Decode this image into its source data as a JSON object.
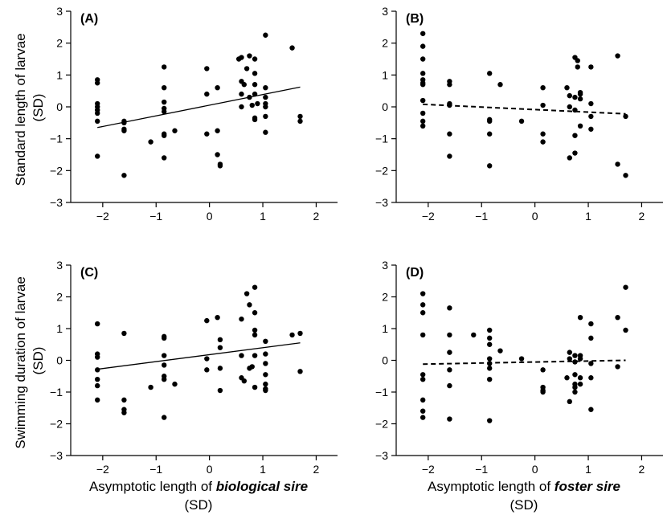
{
  "chart_data": [
    {
      "panel": "(A)",
      "type": "scatter",
      "xlim": [
        -2.6,
        2.4
      ],
      "ylim": [
        -3,
        3
      ],
      "xticks": [
        -2,
        -1,
        0,
        1,
        2
      ],
      "yticks": [
        -3,
        -2,
        -1,
        0,
        1,
        2,
        3
      ],
      "points": [
        [
          -2.1,
          0.85
        ],
        [
          -2.1,
          0.75
        ],
        [
          -2.1,
          0.1
        ],
        [
          -2.1,
          0.0
        ],
        [
          -2.1,
          -0.1
        ],
        [
          -2.1,
          -0.2
        ],
        [
          -2.1,
          -0.45
        ],
        [
          -2.1,
          -1.55
        ],
        [
          -1.6,
          -0.45
        ],
        [
          -1.6,
          -0.5
        ],
        [
          -1.6,
          -0.7
        ],
        [
          -1.6,
          -0.75
        ],
        [
          -1.6,
          -2.15
        ],
        [
          -1.1,
          -1.1
        ],
        [
          -0.85,
          1.25
        ],
        [
          -0.85,
          0.6
        ],
        [
          -0.85,
          0.15
        ],
        [
          -0.85,
          -0.05
        ],
        [
          -0.85,
          -0.15
        ],
        [
          -0.85,
          -0.85
        ],
        [
          -0.85,
          -0.9
        ],
        [
          -0.85,
          -1.6
        ],
        [
          -0.65,
          -0.75
        ],
        [
          -0.05,
          1.2
        ],
        [
          -0.05,
          0.4
        ],
        [
          -0.05,
          -0.85
        ],
        [
          0.15,
          0.6
        ],
        [
          0.15,
          -0.75
        ],
        [
          0.15,
          -1.5
        ],
        [
          0.2,
          -1.8
        ],
        [
          0.2,
          -1.85
        ],
        [
          0.55,
          1.5
        ],
        [
          0.6,
          1.55
        ],
        [
          0.6,
          0.8
        ],
        [
          0.65,
          0.7
        ],
        [
          0.6,
          0.4
        ],
        [
          0.6,
          0.0
        ],
        [
          0.7,
          1.2
        ],
        [
          0.75,
          1.6
        ],
        [
          0.75,
          0.3
        ],
        [
          0.8,
          0.05
        ],
        [
          0.85,
          1.5
        ],
        [
          0.85,
          1.05
        ],
        [
          0.85,
          0.7
        ],
        [
          0.85,
          0.4
        ],
        [
          0.9,
          0.1
        ],
        [
          0.85,
          -0.35
        ],
        [
          0.85,
          -0.4
        ],
        [
          1.05,
          2.25
        ],
        [
          1.05,
          0.6
        ],
        [
          1.05,
          0.3
        ],
        [
          1.05,
          0.1
        ],
        [
          1.05,
          0.0
        ],
        [
          1.05,
          -0.3
        ],
        [
          1.05,
          -0.8
        ],
        [
          1.55,
          1.85
        ],
        [
          1.7,
          -0.3
        ],
        [
          1.7,
          -0.45
        ]
      ],
      "trend": {
        "x": [
          -2.1,
          1.7
        ],
        "y": [
          -0.65,
          0.62
        ],
        "style": "solid"
      }
    },
    {
      "panel": "(B)",
      "type": "scatter",
      "xlim": [
        -2.6,
        2.4
      ],
      "ylim": [
        -3,
        3
      ],
      "xticks": [
        -2,
        -1,
        0,
        1,
        2
      ],
      "yticks": [
        -3,
        -2,
        -1,
        0,
        1,
        2,
        3
      ],
      "points": [
        [
          -2.1,
          2.3
        ],
        [
          -2.1,
          1.9
        ],
        [
          -2.1,
          1.5
        ],
        [
          -2.1,
          1.05
        ],
        [
          -2.1,
          0.85
        ],
        [
          -2.1,
          0.75
        ],
        [
          -2.1,
          0.7
        ],
        [
          -2.1,
          0.2
        ],
        [
          -2.1,
          -0.2
        ],
        [
          -2.1,
          -0.45
        ],
        [
          -2.1,
          -0.6
        ],
        [
          -1.6,
          0.8
        ],
        [
          -1.6,
          0.7
        ],
        [
          -1.6,
          0.1
        ],
        [
          -1.6,
          0.05
        ],
        [
          -1.6,
          -0.85
        ],
        [
          -1.6,
          -1.55
        ],
        [
          -0.85,
          1.05
        ],
        [
          -0.85,
          -0.4
        ],
        [
          -0.85,
          -0.45
        ],
        [
          -0.85,
          -0.85
        ],
        [
          -0.85,
          -1.85
        ],
        [
          -0.65,
          0.7
        ],
        [
          -0.25,
          -0.45
        ],
        [
          0.15,
          0.6
        ],
        [
          0.15,
          0.05
        ],
        [
          0.15,
          -0.85
        ],
        [
          0.15,
          -1.1
        ],
        [
          0.6,
          0.6
        ],
        [
          0.65,
          0.35
        ],
        [
          0.65,
          0.0
        ],
        [
          0.65,
          -1.6
        ],
        [
          0.75,
          1.55
        ],
        [
          0.8,
          1.45
        ],
        [
          0.8,
          1.25
        ],
        [
          0.75,
          0.3
        ],
        [
          0.75,
          -0.1
        ],
        [
          0.75,
          -0.9
        ],
        [
          0.75,
          -1.45
        ],
        [
          0.85,
          0.45
        ],
        [
          0.85,
          0.4
        ],
        [
          0.85,
          0.25
        ],
        [
          0.85,
          -0.6
        ],
        [
          1.05,
          1.25
        ],
        [
          1.05,
          0.1
        ],
        [
          1.05,
          -0.3
        ],
        [
          1.05,
          -0.7
        ],
        [
          1.55,
          1.6
        ],
        [
          1.55,
          -1.8
        ],
        [
          1.7,
          -0.3
        ],
        [
          1.7,
          -2.15
        ]
      ],
      "trend": {
        "x": [
          -2.1,
          1.7
        ],
        "y": [
          0.08,
          -0.22
        ],
        "style": "dashed"
      }
    },
    {
      "panel": "(C)",
      "type": "scatter",
      "xlim": [
        -2.6,
        2.4
      ],
      "ylim": [
        -3,
        3
      ],
      "xticks": [
        -2,
        -1,
        0,
        1,
        2
      ],
      "yticks": [
        -3,
        -2,
        -1,
        0,
        1,
        2,
        3
      ],
      "points": [
        [
          -2.1,
          1.15
        ],
        [
          -2.1,
          0.2
        ],
        [
          -2.1,
          0.1
        ],
        [
          -2.1,
          -0.3
        ],
        [
          -2.1,
          -0.6
        ],
        [
          -2.1,
          -0.8
        ],
        [
          -2.1,
          -1.25
        ],
        [
          -1.6,
          0.85
        ],
        [
          -1.6,
          -1.25
        ],
        [
          -1.6,
          -1.55
        ],
        [
          -1.6,
          -1.65
        ],
        [
          -1.1,
          -0.85
        ],
        [
          -0.85,
          0.75
        ],
        [
          -0.85,
          0.7
        ],
        [
          -0.85,
          0.15
        ],
        [
          -0.85,
          -0.15
        ],
        [
          -0.85,
          -0.5
        ],
        [
          -0.85,
          -0.6
        ],
        [
          -0.85,
          -1.8
        ],
        [
          -0.65,
          -0.75
        ],
        [
          -0.05,
          1.25
        ],
        [
          -0.05,
          0.05
        ],
        [
          -0.05,
          -0.3
        ],
        [
          0.15,
          1.35
        ],
        [
          0.2,
          0.65
        ],
        [
          0.2,
          0.4
        ],
        [
          0.2,
          -0.25
        ],
        [
          0.2,
          -0.95
        ],
        [
          0.6,
          1.3
        ],
        [
          0.6,
          0.15
        ],
        [
          0.6,
          -0.55
        ],
        [
          0.65,
          -0.65
        ],
        [
          0.7,
          2.1
        ],
        [
          0.75,
          1.75
        ],
        [
          0.75,
          -0.25
        ],
        [
          0.8,
          -0.2
        ],
        [
          0.85,
          2.3
        ],
        [
          0.85,
          1.5
        ],
        [
          0.85,
          0.95
        ],
        [
          0.85,
          0.8
        ],
        [
          0.85,
          0.15
        ],
        [
          0.85,
          -0.85
        ],
        [
          1.05,
          0.6
        ],
        [
          1.05,
          0.2
        ],
        [
          1.05,
          -0.1
        ],
        [
          1.05,
          -0.45
        ],
        [
          1.05,
          -0.75
        ],
        [
          1.05,
          -0.9
        ],
        [
          1.05,
          -0.95
        ],
        [
          1.55,
          0.8
        ],
        [
          1.7,
          0.85
        ],
        [
          1.7,
          -0.35
        ]
      ],
      "trend": {
        "x": [
          -2.1,
          1.7
        ],
        "y": [
          -0.28,
          0.55
        ],
        "style": "solid"
      }
    },
    {
      "panel": "(D)",
      "type": "scatter",
      "xlim": [
        -2.6,
        2.4
      ],
      "ylim": [
        -3,
        3
      ],
      "xticks": [
        -2,
        -1,
        0,
        1,
        2
      ],
      "yticks": [
        -3,
        -2,
        -1,
        0,
        1,
        2,
        3
      ],
      "points": [
        [
          -2.1,
          2.1
        ],
        [
          -2.1,
          1.75
        ],
        [
          -2.1,
          1.5
        ],
        [
          -2.1,
          0.8
        ],
        [
          -2.1,
          -0.45
        ],
        [
          -2.1,
          -0.6
        ],
        [
          -2.1,
          -1.25
        ],
        [
          -2.1,
          -1.6
        ],
        [
          -2.1,
          -1.8
        ],
        [
          -1.6,
          1.65
        ],
        [
          -1.6,
          0.8
        ],
        [
          -1.6,
          0.25
        ],
        [
          -1.6,
          -0.3
        ],
        [
          -1.6,
          -0.8
        ],
        [
          -1.6,
          -1.85
        ],
        [
          -1.15,
          0.8
        ],
        [
          -0.85,
          0.95
        ],
        [
          -0.85,
          0.7
        ],
        [
          -0.85,
          0.5
        ],
        [
          -0.85,
          0.05
        ],
        [
          -0.85,
          -0.1
        ],
        [
          -0.85,
          -0.25
        ],
        [
          -0.85,
          -0.6
        ],
        [
          -0.85,
          -1.9
        ],
        [
          -0.65,
          0.3
        ],
        [
          -0.25,
          0.05
        ],
        [
          0.15,
          -0.3
        ],
        [
          0.15,
          -0.85
        ],
        [
          0.15,
          -0.95
        ],
        [
          0.15,
          -1.0
        ],
        [
          0.6,
          -0.55
        ],
        [
          0.65,
          0.25
        ],
        [
          0.65,
          0.05
        ],
        [
          0.65,
          -1.3
        ],
        [
          0.75,
          0.15
        ],
        [
          0.75,
          -0.05
        ],
        [
          0.75,
          -0.45
        ],
        [
          0.75,
          -0.75
        ],
        [
          0.75,
          -0.85
        ],
        [
          0.75,
          -1.0
        ],
        [
          0.85,
          1.35
        ],
        [
          0.85,
          0.15
        ],
        [
          0.85,
          0.05
        ],
        [
          0.85,
          -0.55
        ],
        [
          0.85,
          -0.75
        ],
        [
          1.05,
          1.15
        ],
        [
          1.05,
          0.7
        ],
        [
          1.05,
          -0.1
        ],
        [
          1.05,
          -0.55
        ],
        [
          1.05,
          -1.55
        ],
        [
          1.55,
          1.35
        ],
        [
          1.55,
          -0.2
        ],
        [
          1.7,
          2.3
        ],
        [
          1.7,
          0.95
        ]
      ],
      "trend": {
        "x": [
          -2.1,
          1.7
        ],
        "y": [
          -0.12,
          0.0
        ],
        "style": "dashed"
      }
    }
  ],
  "labels": {
    "ylabel_top_line1": "Standard length of larvae",
    "ylabel_top_line2": "(SD)",
    "ylabel_bottom_line1": "Swimming duration of larvae",
    "ylabel_bottom_line2": "(SD)",
    "xlabel_left_prefix": "Asymptotic length of ",
    "xlabel_left_emph": "biological sire",
    "xlabel_left_line2": "(SD)",
    "xlabel_right_prefix": "Asymptotic length of ",
    "xlabel_right_emph": "foster sire",
    "xlabel_right_line2": "(SD)"
  }
}
